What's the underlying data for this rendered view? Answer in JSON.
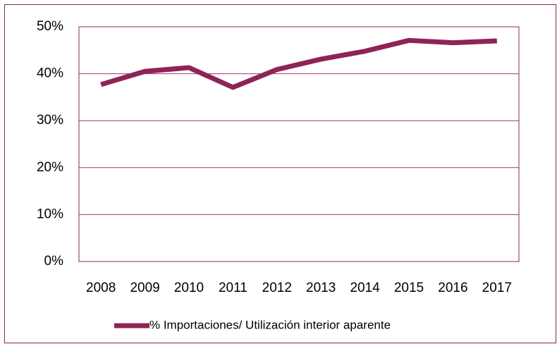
{
  "chart_data": {
    "type": "line",
    "categories": [
      "2008",
      "2009",
      "2010",
      "2011",
      "2012",
      "2013",
      "2014",
      "2015",
      "2016",
      "2017"
    ],
    "series": [
      {
        "name": "% Importaciones/ Utilización interior aparente",
        "color": "#8e2356",
        "values": [
          37.7,
          40.5,
          41.3,
          37.1,
          40.9,
          43.1,
          44.8,
          47.1,
          46.6,
          47.0
        ]
      }
    ],
    "ylim": [
      0,
      50
    ],
    "yticks": [
      {
        "value": 0,
        "label": "0%"
      },
      {
        "value": 10,
        "label": "10%"
      },
      {
        "value": 20,
        "label": "20%"
      },
      {
        "value": 30,
        "label": "30%"
      },
      {
        "value": 40,
        "label": "40%"
      },
      {
        "value": 50,
        "label": "50%"
      }
    ],
    "grid": true,
    "legend": "bottom"
  }
}
